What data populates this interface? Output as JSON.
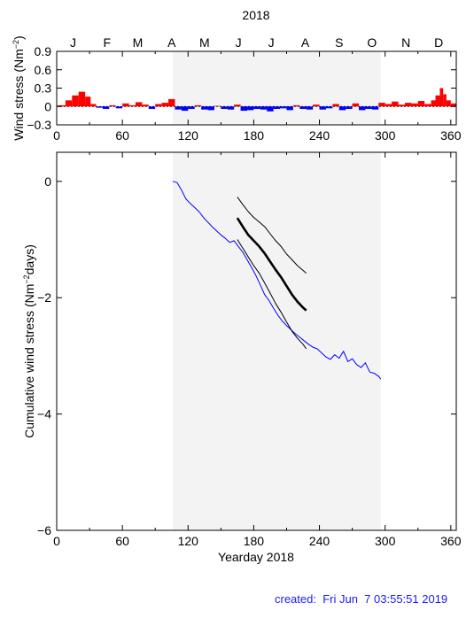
{
  "figure": {
    "year_title": "2018",
    "created_label": "created:",
    "created_time": "Fri Jun  7 03:55:51 2019",
    "colors": {
      "positive_fill": "#ff0000",
      "negative_fill": "#0000ff",
      "shade": "#f3f3f3",
      "series_blue": "#0000ff",
      "series_black": "#000000"
    }
  },
  "chart_data": [
    {
      "type": "bar",
      "ylabel": "Wind stress (Nm",
      "ylabel_sup": "−2",
      "ylabel_end": ")",
      "xlim": [
        0,
        365
      ],
      "ylim": [
        -0.3,
        0.9
      ],
      "yticks": [
        0.9,
        0.6,
        0.3,
        0,
        -0.3
      ],
      "ytick_labels": [
        "0.9",
        "0.6",
        "0.3",
        "0",
        "−0.3"
      ],
      "xticks": [
        0,
        60,
        120,
        180,
        240,
        300,
        360
      ],
      "xtick_labels": [
        "0",
        "60",
        "120",
        "180",
        "240",
        "300",
        "360"
      ],
      "months": [
        "J",
        "F",
        "M",
        "A",
        "M",
        "J",
        "J",
        "A",
        "S",
        "O",
        "N",
        "D"
      ],
      "month_positions": [
        15,
        46,
        74,
        105,
        135,
        166,
        196,
        227,
        258,
        288,
        319,
        349
      ],
      "shaded_range": [
        106,
        296
      ],
      "series": [
        {
          "values_by_day_range": [
            [
              1,
              8,
              0.02
            ],
            [
              8,
              14,
              0.1
            ],
            [
              14,
              20,
              0.18
            ],
            [
              20,
              26,
              0.24
            ],
            [
              26,
              31,
              0.16
            ],
            [
              31,
              36,
              0.04
            ],
            [
              36,
              42,
              -0.02
            ],
            [
              42,
              48,
              -0.04
            ],
            [
              48,
              54,
              0.02
            ],
            [
              54,
              60,
              -0.03
            ],
            [
              60,
              66,
              0.05
            ],
            [
              66,
              72,
              0.02
            ],
            [
              72,
              78,
              0.07
            ],
            [
              78,
              84,
              0.03
            ],
            [
              84,
              90,
              -0.04
            ],
            [
              90,
              96,
              0.04
            ],
            [
              96,
              102,
              0.06
            ],
            [
              102,
              108,
              0.12
            ],
            [
              108,
              114,
              -0.05
            ],
            [
              114,
              120,
              -0.07
            ],
            [
              120,
              126,
              -0.04
            ],
            [
              126,
              132,
              0.02
            ],
            [
              132,
              138,
              -0.05
            ],
            [
              138,
              144,
              -0.06
            ],
            [
              144,
              150,
              0.01
            ],
            [
              150,
              156,
              -0.04
            ],
            [
              156,
              162,
              -0.05
            ],
            [
              162,
              168,
              0.03
            ],
            [
              168,
              174,
              -0.07
            ],
            [
              174,
              180,
              -0.06
            ],
            [
              180,
              186,
              -0.04
            ],
            [
              186,
              192,
              -0.05
            ],
            [
              192,
              198,
              -0.08
            ],
            [
              198,
              204,
              -0.04
            ],
            [
              204,
              210,
              -0.03
            ],
            [
              210,
              216,
              -0.06
            ],
            [
              216,
              222,
              0.02
            ],
            [
              222,
              228,
              -0.04
            ],
            [
              228,
              234,
              -0.05
            ],
            [
              234,
              240,
              0.03
            ],
            [
              240,
              246,
              -0.05
            ],
            [
              246,
              252,
              -0.03
            ],
            [
              252,
              258,
              0.04
            ],
            [
              258,
              264,
              -0.06
            ],
            [
              264,
              270,
              -0.04
            ],
            [
              270,
              276,
              0.05
            ],
            [
              276,
              282,
              -0.06
            ],
            [
              282,
              288,
              -0.04
            ],
            [
              288,
              294,
              -0.05
            ],
            [
              294,
              300,
              0.06
            ],
            [
              300,
              306,
              0.04
            ],
            [
              306,
              312,
              0.08
            ],
            [
              312,
              318,
              0.03
            ],
            [
              318,
              324,
              0.06
            ],
            [
              324,
              330,
              0.05
            ],
            [
              330,
              336,
              0.09
            ],
            [
              336,
              342,
              0.04
            ],
            [
              342,
              346,
              0.1
            ],
            [
              346,
              350,
              0.18
            ],
            [
              350,
              353,
              0.3
            ],
            [
              353,
              356,
              0.2
            ],
            [
              356,
              360,
              0.1
            ],
            [
              360,
              365,
              0.05
            ]
          ]
        }
      ]
    },
    {
      "type": "line",
      "xlabel": "Yearday 2018",
      "ylabel": "Cumulative wind stress (Nm",
      "ylabel_sup": "−2",
      "ylabel_end": "days)",
      "xlim": [
        0,
        365
      ],
      "ylim": [
        -6,
        0.5
      ],
      "yticks": [
        0,
        -2,
        -4,
        -6
      ],
      "ytick_labels": [
        "0",
        "−2",
        "−4",
        "−6"
      ],
      "xticks": [
        0,
        60,
        120,
        180,
        240,
        300,
        360
      ],
      "xtick_labels": [
        "0",
        "60",
        "120",
        "180",
        "240",
        "300",
        "360"
      ],
      "shaded_range": [
        106,
        296
      ],
      "series": [
        {
          "style": "blue-thin",
          "x": [
            106,
            110,
            114,
            118,
            122,
            126,
            130,
            134,
            138,
            142,
            146,
            150,
            154,
            158,
            162,
            166,
            170,
            174,
            178,
            182,
            186,
            190,
            194,
            198,
            202,
            206,
            210,
            214,
            218,
            222,
            226,
            230,
            234,
            238,
            242,
            246,
            250,
            254,
            258,
            262,
            266,
            270,
            274,
            278,
            282,
            286,
            290,
            294,
            296
          ],
          "y": [
            0.0,
            -0.02,
            -0.15,
            -0.3,
            -0.38,
            -0.45,
            -0.52,
            -0.62,
            -0.7,
            -0.78,
            -0.85,
            -0.92,
            -0.98,
            -1.05,
            -1.02,
            -1.12,
            -1.22,
            -1.35,
            -1.48,
            -1.62,
            -1.78,
            -1.95,
            -2.05,
            -2.18,
            -2.3,
            -2.4,
            -2.48,
            -2.55,
            -2.62,
            -2.68,
            -2.74,
            -2.8,
            -2.85,
            -2.88,
            -2.95,
            -3.02,
            -3.06,
            -2.98,
            -3.04,
            -2.92,
            -3.1,
            -3.05,
            -3.15,
            -3.2,
            -3.12,
            -3.28,
            -3.3,
            -3.35,
            -3.4
          ]
        },
        {
          "style": "black-thin-upper",
          "x": [
            165,
            170,
            175,
            180,
            185,
            190,
            195,
            200,
            205,
            210,
            215,
            220,
            225,
            228
          ],
          "y": [
            -0.27,
            -0.4,
            -0.52,
            -0.62,
            -0.7,
            -0.78,
            -0.9,
            -1.02,
            -1.12,
            -1.25,
            -1.35,
            -1.45,
            -1.53,
            -1.58
          ]
        },
        {
          "style": "black-thick-mean",
          "x": [
            165,
            170,
            175,
            180,
            185,
            190,
            195,
            200,
            205,
            210,
            215,
            220,
            225,
            228
          ],
          "y": [
            -0.63,
            -0.78,
            -0.92,
            -1.02,
            -1.12,
            -1.24,
            -1.38,
            -1.52,
            -1.65,
            -1.8,
            -1.95,
            -2.07,
            -2.17,
            -2.22
          ]
        },
        {
          "style": "black-thin-lower",
          "x": [
            165,
            170,
            175,
            180,
            185,
            190,
            195,
            200,
            205,
            210,
            215,
            220,
            225,
            228
          ],
          "y": [
            -1.0,
            -1.15,
            -1.3,
            -1.45,
            -1.58,
            -1.75,
            -1.92,
            -2.1,
            -2.25,
            -2.42,
            -2.58,
            -2.7,
            -2.8,
            -2.88
          ]
        }
      ]
    }
  ]
}
